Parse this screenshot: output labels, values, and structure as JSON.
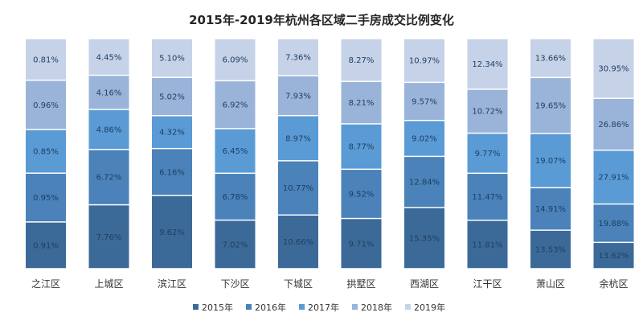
{
  "chart_data": {
    "type": "bar",
    "stacked": "percent",
    "title": "2015年-2019年杭州各区域二手房成交比例变化",
    "categories": [
      "之江区",
      "上城区",
      "滨江区",
      "下沙区",
      "下城区",
      "拱墅区",
      "西湖区",
      "江干区",
      "萧山区",
      "余杭区"
    ],
    "series": [
      {
        "name": "2015年",
        "color": "#3b6a98",
        "values": [
          0.91,
          7.76,
          9.62,
          7.02,
          10.66,
          9.71,
          15.35,
          11.81,
          13.53,
          13.62
        ]
      },
      {
        "name": "2016年",
        "color": "#4a82b9",
        "values": [
          0.95,
          6.72,
          6.16,
          6.78,
          10.77,
          9.52,
          12.84,
          11.47,
          14.91,
          19.88
        ]
      },
      {
        "name": "2017年",
        "color": "#5a9bd5",
        "values": [
          0.85,
          4.86,
          4.32,
          6.45,
          8.97,
          8.77,
          9.02,
          9.77,
          19.07,
          27.91
        ]
      },
      {
        "name": "2018年",
        "color": "#9ab4d9",
        "values": [
          0.96,
          4.16,
          5.02,
          6.92,
          7.93,
          8.21,
          9.57,
          10.72,
          19.65,
          26.86
        ]
      },
      {
        "name": "2019年",
        "color": "#c6d2e8",
        "values": [
          0.81,
          4.45,
          5.1,
          6.09,
          7.36,
          8.27,
          10.97,
          12.34,
          13.66,
          30.95
        ]
      }
    ],
    "value_suffix": "%",
    "legend_position": "bottom",
    "grid": false
  }
}
